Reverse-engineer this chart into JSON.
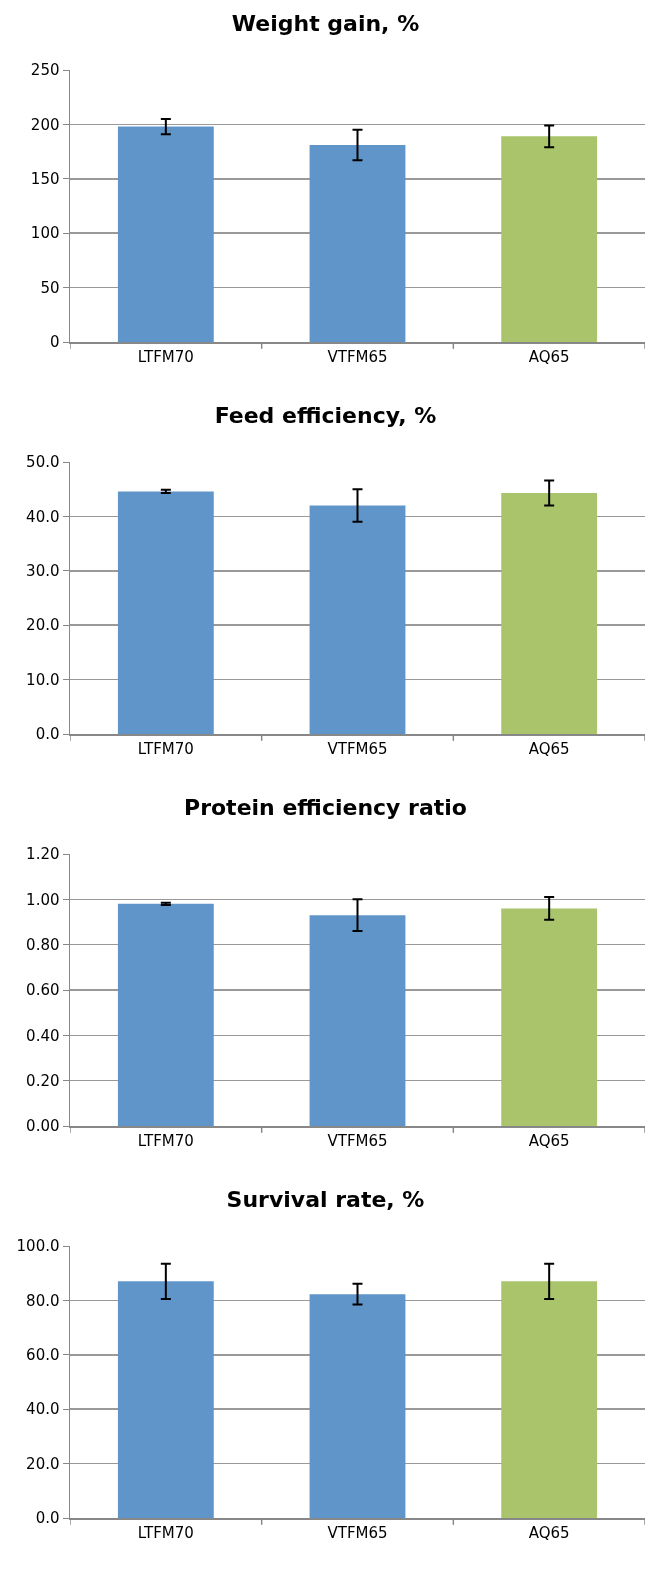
{
  "chart_data": [
    {
      "type": "bar",
      "title": "Weight gain, %",
      "categories": [
        "LTFM70",
        "VTFM65",
        "AQ65"
      ],
      "values": [
        198,
        181,
        189
      ],
      "colors": [
        "#6095c9",
        "#6095c9",
        "#a9c46b"
      ],
      "errors": [
        7,
        14,
        10
      ],
      "ylim": [
        0,
        250
      ],
      "yticks": [
        0,
        50,
        100,
        150,
        200,
        250
      ],
      "grid": "y"
    },
    {
      "type": "bar",
      "title": "Feed efficiency, %",
      "categories": [
        "LTFM70",
        "VTFM65",
        "AQ65"
      ],
      "values": [
        44.6,
        42.0,
        44.3
      ],
      "colors": [
        "#6095c9",
        "#6095c9",
        "#a9c46b"
      ],
      "errors": [
        0.3,
        3,
        2.3
      ],
      "ylim": [
        0,
        50
      ],
      "yticks": [
        {
          "value": 0,
          "label": "0.0"
        },
        {
          "value": 10,
          "label": "10.0"
        },
        {
          "value": 20,
          "label": "20.0"
        },
        {
          "value": 30,
          "label": "30.0"
        },
        {
          "value": 40,
          "label": "40.0"
        },
        {
          "value": 50,
          "label": "50.0"
        }
      ],
      "grid": "y"
    },
    {
      "type": "bar",
      "title": "Protein efficiency ratio",
      "categories": [
        "LTFM70",
        "VTFM65",
        "AQ65"
      ],
      "values": [
        0.98,
        0.93,
        0.96
      ],
      "colors": [
        "#6095c9",
        "#6095c9",
        "#a9c46b"
      ],
      "errors": [
        0.005,
        0.07,
        0.05
      ],
      "ylim": [
        0,
        1.2
      ],
      "yticks": [
        {
          "value": 0,
          "label": "0.00"
        },
        {
          "value": 0.2,
          "label": "0.20"
        },
        {
          "value": 0.4,
          "label": "0.40"
        },
        {
          "value": 0.6,
          "label": "0.60"
        },
        {
          "value": 0.8,
          "label": "0.80"
        },
        {
          "value": 1,
          "label": "1.00"
        },
        {
          "value": 1.2,
          "label": "1.20"
        }
      ],
      "grid": "y"
    },
    {
      "type": "bar",
      "title": "Survival rate, %",
      "categories": [
        "LTFM70",
        "VTFM65",
        "AQ65"
      ],
      "values": [
        87,
        82.3,
        87
      ],
      "colors": [
        "#6095c9",
        "#6095c9",
        "#a9c46b"
      ],
      "errors": [
        6.5,
        3.8,
        6.5
      ],
      "ylim": [
        0,
        100
      ],
      "yticks": [
        {
          "value": 0,
          "label": "0.0"
        },
        {
          "value": 20,
          "label": "20.0"
        },
        {
          "value": 40,
          "label": "40.0"
        },
        {
          "value": 60,
          "label": "60.0"
        },
        {
          "value": 80,
          "label": "80.0"
        },
        {
          "value": 100,
          "label": "100.0"
        }
      ],
      "grid": "y"
    }
  ]
}
